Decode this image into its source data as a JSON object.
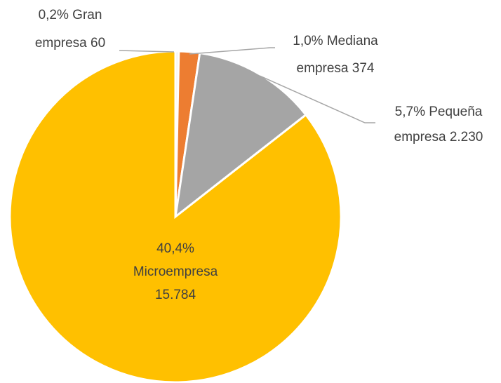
{
  "chart_data": {
    "type": "pie",
    "categories": [
      "Gran empresa",
      "Mediana empresa",
      "Pequeña empresa",
      "Microempresa"
    ],
    "values": [
      60,
      374,
      2230,
      15784
    ],
    "value_labels": [
      "60",
      "374",
      "2.230",
      "15.784"
    ],
    "percent_labels": [
      "0,2%",
      "1,0%",
      "5,7%",
      "40,4%"
    ],
    "colors": [
      "#f2f2f2",
      "#ed7d31",
      "#a5a5a5",
      "#ffc000"
    ]
  }
}
